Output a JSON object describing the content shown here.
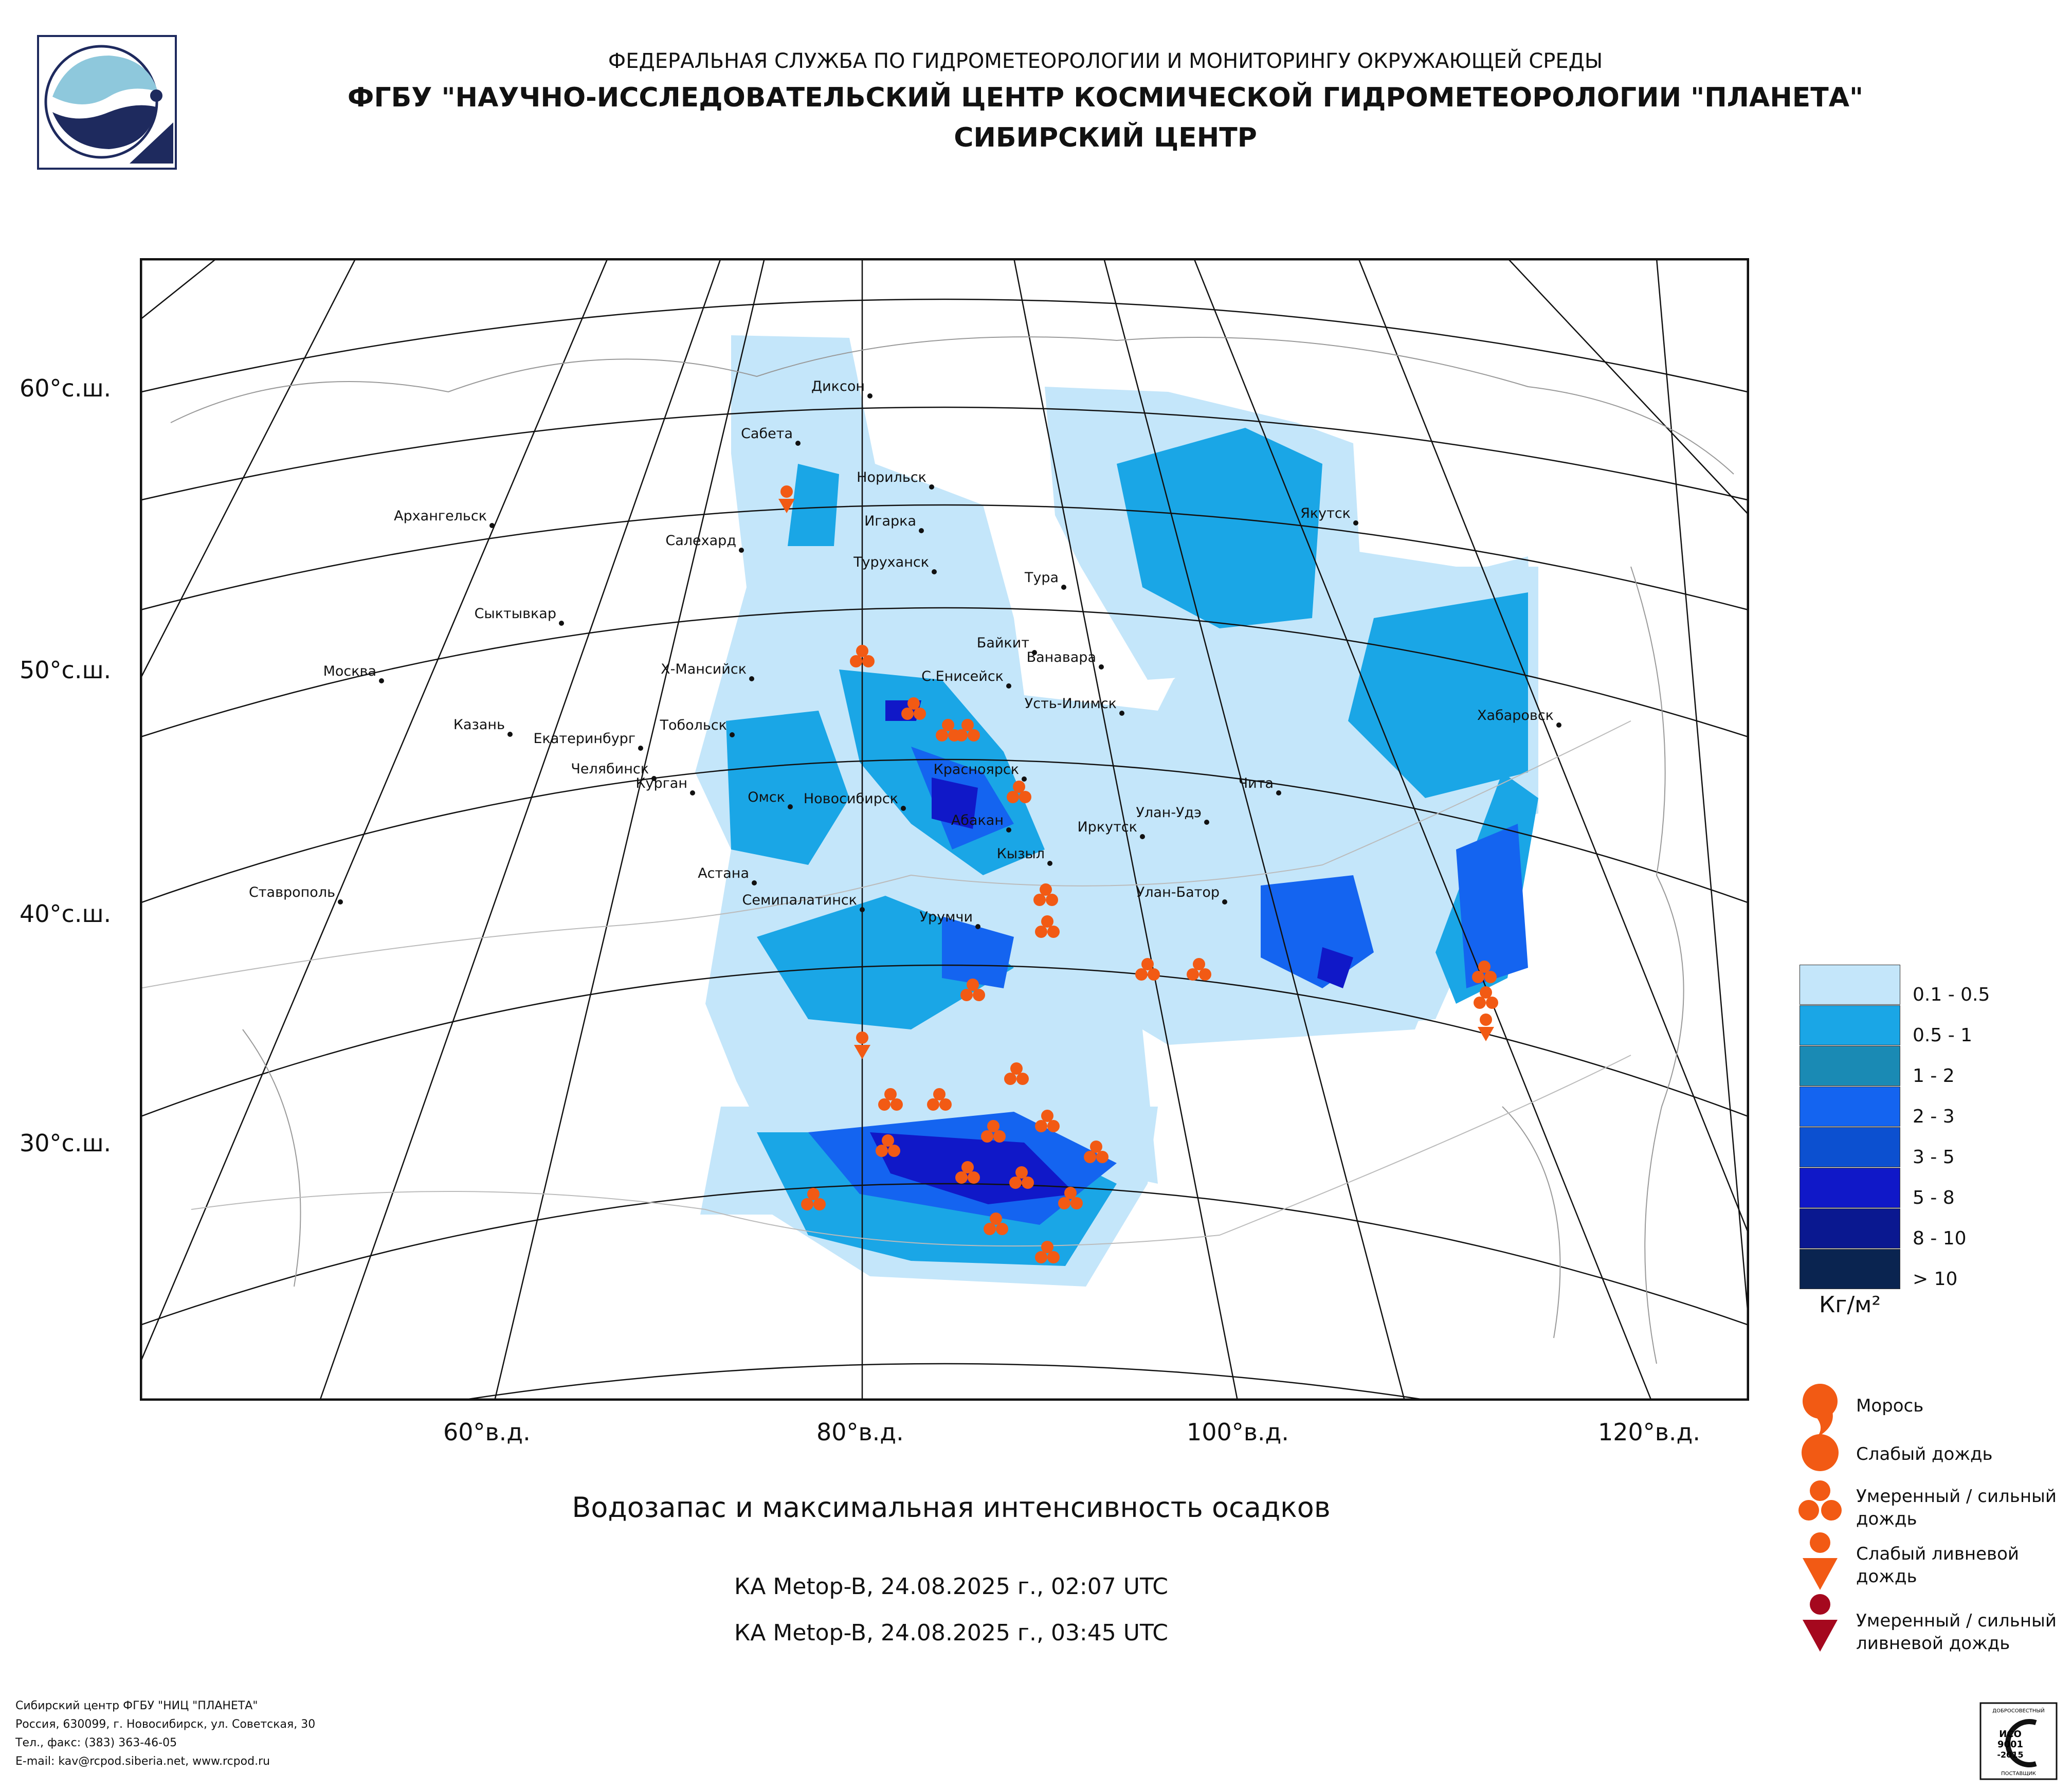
{
  "header": {
    "line1": "ФЕДЕРАЛЬНАЯ СЛУЖБА ПО ГИДРОМЕТЕОРОЛОГИИ И МОНИТОРИНГУ ОКРУЖАЮЩЕЙ СРЕДЫ",
    "line2": "ФГБУ \"НАУЧНО-ИССЛЕДОВАТЕЛЬСКИЙ ЦЕНТР КОСМИЧЕСКОЙ ГИДРОМЕТЕОРОЛОГИИ \"ПЛАНЕТА\"",
    "line3": "СИБИРСКИЙ ЦЕНТР"
  },
  "latitude_labels": [
    "60°с.ш.",
    "50°с.ш.",
    "40°с.ш.",
    "30°с.ш."
  ],
  "longitude_labels": [
    "60°в.д.",
    "80°в.д.",
    "100°в.д.",
    "120°в.д."
  ],
  "cities": [
    "Диксон",
    "Сабета",
    "Норильск",
    "Игарка",
    "Салехард",
    "Туруханск",
    "Архангельск",
    "Якутск",
    "Тура",
    "Сыктывкар",
    "Байкит",
    "Ванавара",
    "Х-Мансийск",
    "Москва",
    "С.Енисейск",
    "Усть-Илимск",
    "Хабаровск",
    "Казань",
    "Тобольск",
    "Екатеринбург",
    "Челябинск",
    "Курган",
    "Красноярск",
    "Чита",
    "Омск",
    "Новосибирск",
    "Абакан",
    "Улан-Удэ",
    "Иркутск",
    "Кызыл",
    "Астана",
    "Ставрополь",
    "Семипалатинск",
    "Улан-Батор",
    "Урумчи"
  ],
  "legend": {
    "classes": [
      {
        "label": "0.1 - 0.5",
        "color": "#c4e6fa"
      },
      {
        "label": "0.5 - 1",
        "color": "#1aa6e6"
      },
      {
        "label": "1 - 2",
        "color": "#1a8ab4"
      },
      {
        "label": "2 - 3",
        "color": "#1464f0"
      },
      {
        "label": "3 - 5",
        "color": "#0c50d0"
      },
      {
        "label": "5 - 8",
        "color": "#1018c8"
      },
      {
        "label": "8 - 10",
        "color": "#0a1890"
      },
      {
        "label": "> 10",
        "color": "#0a2450"
      }
    ],
    "unit": "Кг/м²"
  },
  "symbols": [
    {
      "label": "Морось",
      "icon": "drizzle-icon",
      "color": "#f25a14"
    },
    {
      "label": "Слабый дождь",
      "icon": "light-rain-icon",
      "color": "#f25a14"
    },
    {
      "label": "Умеренный / сильный дождь",
      "icon": "moderate-rain-icon",
      "color": "#f25a14"
    },
    {
      "label": "Слабый ливневой дождь",
      "icon": "light-shower-icon",
      "color": "#f25a14"
    },
    {
      "label": "Умеренный / сильный ливневой дождь",
      "icon": "heavy-shower-icon",
      "color": "#a5081e"
    }
  ],
  "caption": "Водозапас и максимальная интенсивность осадков",
  "satellite_passes": [
    "КА Metop-B, 24.08.2025 г., 02:07 UTC",
    "КА Metop-B, 24.08.2025 г., 03:45 UTC"
  ],
  "footer": [
    "Сибирский центр ФГБУ \"НИЦ \"ПЛАНЕТА\"",
    "Россия, 630099, г. Новосибирск, ул. Советская, 30",
    "Тел., факс: (383) 363-46-05",
    "E-mail: kav@rcpod.siberia.net, www.rcpod.ru"
  ],
  "iso_badge": {
    "top": "ДОБРОСОВЕСТНЫЙ",
    "mid1": "ИСО",
    "mid2": "9001",
    "mid3": "-2015",
    "bottom": "ПОСТАВЩИК"
  }
}
